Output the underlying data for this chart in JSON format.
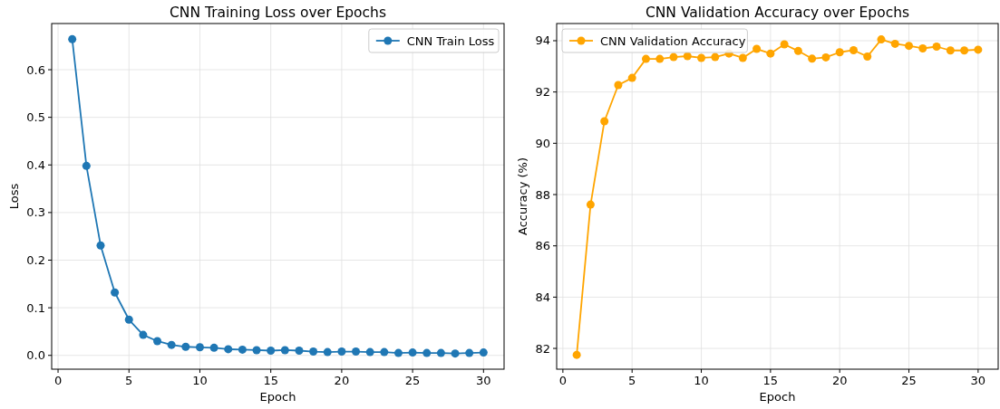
{
  "chart_data": [
    {
      "type": "line",
      "title": "CNN Training Loss over Epochs",
      "xlabel": "Epoch",
      "ylabel": "Loss",
      "x": [
        1,
        2,
        3,
        4,
        5,
        6,
        7,
        8,
        9,
        10,
        11,
        12,
        13,
        14,
        15,
        16,
        17,
        18,
        19,
        20,
        21,
        22,
        23,
        24,
        25,
        26,
        27,
        28,
        29,
        30
      ],
      "series": [
        {
          "name": "CNN Train Loss",
          "color": "#1f77b4",
          "values": [
            0.664,
            0.398,
            0.231,
            0.132,
            0.075,
            0.043,
            0.03,
            0.022,
            0.018,
            0.017,
            0.016,
            0.013,
            0.012,
            0.011,
            0.01,
            0.011,
            0.01,
            0.008,
            0.007,
            0.008,
            0.008,
            0.007,
            0.007,
            0.005,
            0.006,
            0.005,
            0.005,
            0.004,
            0.005,
            0.006
          ]
        }
      ],
      "xlim": [
        -0.45,
        31.45
      ],
      "ylim": [
        -0.029,
        0.697
      ],
      "xticks": [
        0,
        5,
        10,
        15,
        20,
        25,
        30
      ],
      "yticks": [
        {
          "value": 0,
          "label": "0.0"
        },
        0.1,
        0.2,
        0.3,
        0.4,
        0.5,
        0.6
      ],
      "grid": true,
      "legend": "top right",
      "marker": "circle"
    },
    {
      "type": "line",
      "title": "CNN Validation Accuracy over Epochs",
      "xlabel": "Epoch",
      "ylabel": "Accuracy (%)",
      "x": [
        1,
        2,
        3,
        4,
        5,
        6,
        7,
        8,
        9,
        10,
        11,
        12,
        13,
        14,
        15,
        16,
        17,
        18,
        19,
        20,
        21,
        22,
        23,
        24,
        25,
        26,
        27,
        28,
        29,
        30
      ],
      "series": [
        {
          "name": "CNN Validation Accuracy",
          "color": "#ffa500",
          "values": [
            81.75,
            87.61,
            90.86,
            92.27,
            92.55,
            93.29,
            93.29,
            93.36,
            93.4,
            93.33,
            93.36,
            93.5,
            93.33,
            93.68,
            93.5,
            93.86,
            93.6,
            93.3,
            93.35,
            93.55,
            93.63,
            93.38,
            94.05,
            93.88,
            93.8,
            93.7,
            93.77,
            93.62,
            93.62,
            93.65
          ]
        }
      ],
      "xlim": [
        -0.45,
        31.45
      ],
      "ylim": [
        81.19,
        94.67
      ],
      "xticks": [
        0,
        5,
        10,
        15,
        20,
        25,
        30
      ],
      "yticks": [
        82,
        84,
        86,
        88,
        90,
        92,
        94
      ],
      "grid": true,
      "legend": "top left",
      "marker": "circle"
    }
  ]
}
